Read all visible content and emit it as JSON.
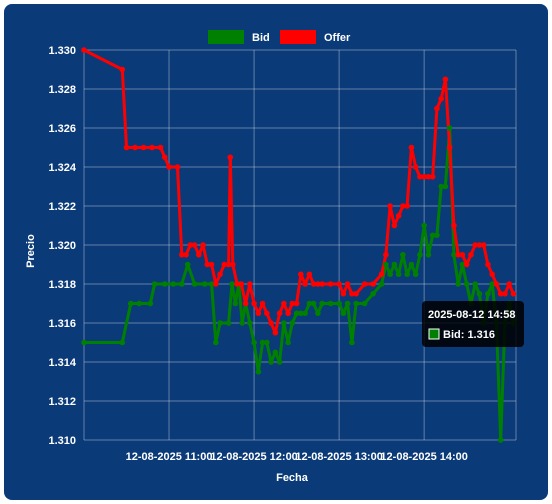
{
  "chart_data": {
    "type": "line",
    "title": "",
    "xlabel": "Fecha",
    "ylabel": "Precio",
    "ylim": [
      1.31,
      1.33
    ],
    "yticks": [
      "1.310",
      "1.312",
      "1.314",
      "1.316",
      "1.318",
      "1.320",
      "1.322",
      "1.324",
      "1.326",
      "1.328",
      "1.330"
    ],
    "xticks": [
      {
        "label": "12-08-2025 11:00",
        "t": 11.0
      },
      {
        "label": "12-08-2025 12:00",
        "t": 12.0
      },
      {
        "label": "12-08-2025 13:00",
        "t": 13.0
      },
      {
        "label": "12-08-2025 14:00",
        "t": 14.0
      }
    ],
    "xlim_hours": [
      10.0,
      15.08
    ],
    "legend_position": "top",
    "grid": true,
    "series": [
      {
        "name": "Bid",
        "color": "#008000",
        "points": [
          [
            10.0,
            1.315
          ],
          [
            10.45,
            1.315
          ],
          [
            10.55,
            1.317
          ],
          [
            10.65,
            1.317
          ],
          [
            10.78,
            1.317
          ],
          [
            10.83,
            1.318
          ],
          [
            10.95,
            1.318
          ],
          [
            11.05,
            1.318
          ],
          [
            11.15,
            1.318
          ],
          [
            11.22,
            1.319
          ],
          [
            11.3,
            1.318
          ],
          [
            11.42,
            1.318
          ],
          [
            11.5,
            1.318
          ],
          [
            11.55,
            1.315
          ],
          [
            11.6,
            1.316
          ],
          [
            11.7,
            1.316
          ],
          [
            11.74,
            1.318
          ],
          [
            11.78,
            1.317
          ],
          [
            11.82,
            1.318
          ],
          [
            11.86,
            1.316
          ],
          [
            11.9,
            1.317
          ],
          [
            11.95,
            1.316
          ],
          [
            12.0,
            1.315
          ],
          [
            12.05,
            1.3135
          ],
          [
            12.1,
            1.315
          ],
          [
            12.15,
            1.315
          ],
          [
            12.2,
            1.314
          ],
          [
            12.25,
            1.3145
          ],
          [
            12.3,
            1.314
          ],
          [
            12.35,
            1.316
          ],
          [
            12.4,
            1.315
          ],
          [
            12.45,
            1.316
          ],
          [
            12.5,
            1.3165
          ],
          [
            12.55,
            1.3165
          ],
          [
            12.6,
            1.3165
          ],
          [
            12.65,
            1.317
          ],
          [
            12.7,
            1.317
          ],
          [
            12.75,
            1.3165
          ],
          [
            12.8,
            1.317
          ],
          [
            12.9,
            1.317
          ],
          [
            13.0,
            1.317
          ],
          [
            13.05,
            1.3165
          ],
          [
            13.1,
            1.317
          ],
          [
            13.15,
            1.315
          ],
          [
            13.2,
            1.317
          ],
          [
            13.3,
            1.317
          ],
          [
            13.4,
            1.3175
          ],
          [
            13.5,
            1.318
          ],
          [
            13.55,
            1.319
          ],
          [
            13.6,
            1.3185
          ],
          [
            13.65,
            1.319
          ],
          [
            13.7,
            1.3185
          ],
          [
            13.75,
            1.3195
          ],
          [
            13.8,
            1.3185
          ],
          [
            13.85,
            1.319
          ],
          [
            13.9,
            1.3185
          ],
          [
            13.95,
            1.3195
          ],
          [
            14.0,
            1.321
          ],
          [
            14.05,
            1.3195
          ],
          [
            14.1,
            1.3205
          ],
          [
            14.15,
            1.3205
          ],
          [
            14.2,
            1.323
          ],
          [
            14.25,
            1.323
          ],
          [
            14.3,
            1.326
          ],
          [
            14.35,
            1.3195
          ],
          [
            14.4,
            1.318
          ],
          [
            14.45,
            1.319
          ],
          [
            14.5,
            1.318
          ],
          [
            14.55,
            1.317
          ],
          [
            14.6,
            1.318
          ],
          [
            14.65,
            1.3175
          ],
          [
            14.7,
            1.316
          ],
          [
            14.75,
            1.3175
          ],
          [
            14.8,
            1.318
          ],
          [
            14.85,
            1.316
          ],
          [
            14.9,
            1.31
          ],
          [
            14.95,
            1.316
          ],
          [
            15.0,
            1.317
          ],
          [
            15.05,
            1.316
          ]
        ]
      },
      {
        "name": "Offer",
        "color": "#ff0000",
        "points": [
          [
            10.0,
            1.33
          ],
          [
            10.45,
            1.329
          ],
          [
            10.5,
            1.325
          ],
          [
            10.6,
            1.325
          ],
          [
            10.7,
            1.325
          ],
          [
            10.8,
            1.325
          ],
          [
            10.9,
            1.325
          ],
          [
            10.95,
            1.3245
          ],
          [
            11.0,
            1.324
          ],
          [
            11.1,
            1.324
          ],
          [
            11.15,
            1.3195
          ],
          [
            11.2,
            1.3195
          ],
          [
            11.25,
            1.32
          ],
          [
            11.3,
            1.32
          ],
          [
            11.35,
            1.3195
          ],
          [
            11.4,
            1.32
          ],
          [
            11.45,
            1.319
          ],
          [
            11.5,
            1.319
          ],
          [
            11.55,
            1.318
          ],
          [
            11.6,
            1.3185
          ],
          [
            11.65,
            1.319
          ],
          [
            11.7,
            1.319
          ],
          [
            11.72,
            1.3245
          ],
          [
            11.75,
            1.319
          ],
          [
            11.8,
            1.318
          ],
          [
            11.85,
            1.318
          ],
          [
            11.9,
            1.317
          ],
          [
            11.95,
            1.318
          ],
          [
            12.0,
            1.317
          ],
          [
            12.05,
            1.3165
          ],
          [
            12.1,
            1.317
          ],
          [
            12.15,
            1.3165
          ],
          [
            12.2,
            1.316
          ],
          [
            12.25,
            1.3155
          ],
          [
            12.3,
            1.3165
          ],
          [
            12.35,
            1.317
          ],
          [
            12.4,
            1.3165
          ],
          [
            12.45,
            1.317
          ],
          [
            12.5,
            1.317
          ],
          [
            12.55,
            1.3185
          ],
          [
            12.6,
            1.318
          ],
          [
            12.65,
            1.3185
          ],
          [
            12.7,
            1.318
          ],
          [
            12.75,
            1.318
          ],
          [
            12.8,
            1.318
          ],
          [
            12.9,
            1.318
          ],
          [
            13.0,
            1.318
          ],
          [
            13.05,
            1.3175
          ],
          [
            13.1,
            1.318
          ],
          [
            13.15,
            1.3175
          ],
          [
            13.2,
            1.3175
          ],
          [
            13.3,
            1.318
          ],
          [
            13.4,
            1.318
          ],
          [
            13.5,
            1.3185
          ],
          [
            13.55,
            1.3195
          ],
          [
            13.6,
            1.322
          ],
          [
            13.65,
            1.321
          ],
          [
            13.7,
            1.3215
          ],
          [
            13.75,
            1.322
          ],
          [
            13.8,
            1.322
          ],
          [
            13.85,
            1.325
          ],
          [
            13.9,
            1.324
          ],
          [
            13.95,
            1.3235
          ],
          [
            14.0,
            1.3235
          ],
          [
            14.05,
            1.3235
          ],
          [
            14.1,
            1.3235
          ],
          [
            14.15,
            1.327
          ],
          [
            14.2,
            1.3275
          ],
          [
            14.25,
            1.3285
          ],
          [
            14.3,
            1.325
          ],
          [
            14.35,
            1.321
          ],
          [
            14.4,
            1.3195
          ],
          [
            14.45,
            1.3195
          ],
          [
            14.5,
            1.319
          ],
          [
            14.55,
            1.3195
          ],
          [
            14.6,
            1.32
          ],
          [
            14.65,
            1.32
          ],
          [
            14.7,
            1.32
          ],
          [
            14.75,
            1.319
          ],
          [
            14.8,
            1.3185
          ],
          [
            14.85,
            1.318
          ],
          [
            14.9,
            1.3175
          ],
          [
            14.95,
            1.3175
          ],
          [
            15.0,
            1.318
          ],
          [
            15.05,
            1.3175
          ]
        ]
      }
    ],
    "tooltip": {
      "title": "2025-08-12 14:58",
      "label": "Bid: 1.316",
      "swatch_color": "#008000",
      "t": 14.97,
      "value": 1.316
    }
  }
}
